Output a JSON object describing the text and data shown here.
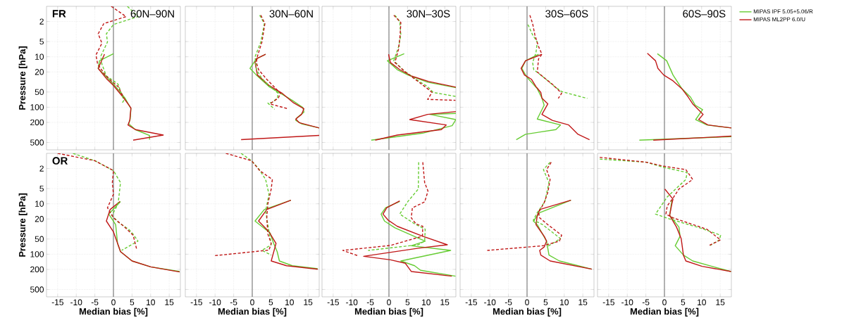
{
  "chart_data": [
    {
      "type": "line",
      "title": "60N–90N",
      "annotations": [
        "FR"
      ],
      "ylabel": "Pressure [hPa]",
      "tick_labels": "y",
      "xlim": [
        -18,
        18
      ],
      "ylim": [
        700,
        1
      ],
      "log": "y",
      "grid": true,
      "xticks": [
        -15,
        -10,
        -5,
        0,
        5,
        10,
        15
      ],
      "yticks": [
        2,
        5,
        10,
        20,
        50,
        100,
        200,
        500
      ],
      "ref_lines": [
        {
          "axis": "x",
          "value": 0,
          "color": "#808080"
        }
      ],
      "series": [
        {
          "color": "#66cc33",
          "line_style": "solid",
          "x": [
            0,
            -3.75,
            -4.1,
            -1.9,
            0.6,
            3.1,
            4.7,
            4.5,
            4.1,
            5.9,
            9.7,
            9.7
          ],
          "values": [
            8.7,
            12,
            17,
            25,
            39,
            66,
            107,
            172,
            213,
            278,
            363,
            440
          ]
        },
        {
          "color": "#c01818",
          "line_style": "solid",
          "x": [
            -2.4,
            -4.1,
            -1.9,
            0,
            2.8,
            4.7,
            4.4,
            3.9,
            5.9,
            13.4,
            5.3
          ],
          "values": [
            8.9,
            17,
            27,
            37,
            66,
            103,
            182,
            225,
            278,
            356,
            450
          ]
        },
        {
          "color": "#66cc33",
          "line_style": "dashed",
          "x": [
            3.75,
            6.6,
            0,
            -1.9,
            -1.6,
            -3.4,
            -3.1,
            -1.9,
            0,
            1.25,
            2.8,
            2.2
          ],
          "values": [
            1.0,
            1.6,
            2.3,
            3.5,
            5.1,
            9.7,
            14,
            24,
            30,
            35,
            73,
            86
          ]
        },
        {
          "color": "#c01818",
          "line_style": "dashed",
          "x": [
            -0.6,
            3.4,
            -2.6,
            -4.1,
            -3.1,
            -4.7,
            -4.25,
            -2.2,
            -0.6,
            1.25,
            2.5,
            2.8
          ],
          "values": [
            1.0,
            1.6,
            2.2,
            3.5,
            5.4,
            9.2,
            14,
            23,
            30,
            39,
            59,
            66
          ]
        }
      ]
    },
    {
      "type": "line",
      "title": "30N–60N",
      "tick_labels": false,
      "xlim": [
        -18,
        18
      ],
      "ylim": [
        700,
        1
      ],
      "log": "y",
      "grid": true,
      "xticks": [
        -15,
        -10,
        -5,
        0,
        5,
        10,
        15
      ],
      "yticks": [
        2,
        5,
        10,
        20,
        50,
        100,
        200,
        500
      ],
      "ref_lines": [
        {
          "axis": "x",
          "value": 0,
          "color": "#808080"
        }
      ],
      "series": [
        {
          "color": "#66cc33",
          "line_style": "solid",
          "x": [
            3.6,
            1.1,
            -0.6,
            1.1,
            4.5,
            7.6,
            10.75,
            13.6,
            13.9,
            12,
            11.7,
            13.25,
            18
          ],
          "values": [
            8.9,
            11,
            17,
            23,
            39,
            53,
            73,
            101,
            125,
            163,
            182,
            213,
            258
          ]
        },
        {
          "color": "#c01818",
          "line_style": "solid",
          "x": [
            3.6,
            1.1,
            0.75,
            1.4,
            4.5,
            7.9,
            11.1,
            13.9,
            13.25,
            11.7,
            12.6,
            18,
            null,
            18,
            -3
          ],
          "values": [
            8.9,
            11,
            13,
            23,
            37,
            52,
            82,
            107,
            139,
            172,
            202,
            258,
            null,
            363,
            440
          ]
        },
        {
          "color": "#66cc33",
          "line_style": "dashed",
          "x": [
            2,
            3.25,
            2.3,
            0.75,
            1.1,
            2.6,
            4.8,
            7,
            6.75,
            5.4,
            4.2,
            6
          ],
          "values": [
            1.5,
            2.2,
            5.1,
            10,
            18,
            27,
            39,
            53,
            66,
            80,
            83,
            110
          ]
        },
        {
          "color": "#c01818",
          "line_style": "dashed",
          "x": [
            2.3,
            3.4,
            2.6,
            1.4,
            1.1,
            1.7,
            3.9,
            6.4,
            7.6,
            7,
            5.1,
            4.8,
            9.5
          ],
          "values": [
            1.5,
            2.2,
            5.1,
            9.7,
            13,
            18,
            28,
            43,
            53,
            66,
            82,
            86,
            107
          ]
        }
      ]
    },
    {
      "type": "line",
      "title": "30N–30S",
      "tick_labels": false,
      "xlim": [
        -18,
        18
      ],
      "ylim": [
        700,
        1
      ],
      "log": "y",
      "grid": true,
      "xticks": [
        -15,
        -10,
        -5,
        0,
        5,
        10,
        15
      ],
      "yticks": [
        2,
        5,
        10,
        20,
        50,
        100,
        200,
        500
      ],
      "ref_lines": [
        {
          "axis": "x",
          "value": 0,
          "color": "#808080"
        }
      ],
      "series": [
        {
          "color": "#66cc33",
          "line_style": "solid",
          "x": [
            4.1,
            -0.4,
            2.25,
            5.1,
            10.4,
            18,
            null,
            18,
            11,
            18,
            17,
            9.1,
            -4.75
          ],
          "values": [
            8.7,
            12,
            18,
            23,
            32,
            41,
            null,
            133,
            139,
            176,
            232,
            327,
            450
          ]
        },
        {
          "color": "#c01818",
          "line_style": "solid",
          "x": [
            -0.1,
            0.4,
            2.9,
            6,
            10.7,
            18,
            null,
            18,
            10.4,
            5.6,
            15.4,
            14.1,
            2.25,
            -3.7
          ],
          "values": [
            8.9,
            13,
            18,
            24,
            31,
            40,
            null,
            122,
            139,
            176,
            225,
            278,
            356,
            450
          ]
        },
        {
          "color": "#66cc33",
          "line_style": "dashed",
          "x": [
            1.6,
            2.9,
            3.2,
            2.6,
            1.3,
            4.1,
            7.25,
            10.4,
            11.9,
            17.9
          ],
          "values": [
            1.5,
            2.0,
            3.7,
            6.3,
            12,
            19,
            28,
            39,
            51,
            61
          ]
        },
        {
          "color": "#c01818",
          "line_style": "dashed",
          "x": [
            1.3,
            3.2,
            3.0,
            2.6,
            1.6,
            4.4,
            7.6,
            10.4,
            11.6,
            10.4,
            17.9
          ],
          "values": [
            1.5,
            2.1,
            3.7,
            7.0,
            13,
            20,
            30,
            43,
            51,
            70,
            73
          ]
        }
      ]
    },
    {
      "type": "line",
      "title": "30S–60S",
      "tick_labels": false,
      "xlim": [
        -18,
        18
      ],
      "ylim": [
        700,
        1
      ],
      "log": "y",
      "grid": true,
      "xticks": [
        -15,
        -10,
        -5,
        0,
        5,
        10,
        15
      ],
      "yticks": [
        2,
        5,
        10,
        20,
        50,
        100,
        200,
        500
      ],
      "ref_lines": [
        {
          "axis": "x",
          "value": 0,
          "color": "#808080"
        }
      ],
      "series": [
        {
          "color": "#66cc33",
          "line_style": "solid",
          "x": [
            3.1,
            -0.4,
            -1.4,
            -0.1,
            2.75,
            4,
            4.6,
            2.75,
            9,
            7.75,
            -0.4,
            -2.9
          ],
          "values": [
            8.9,
            12,
            17,
            25,
            43,
            66,
            91,
            172,
            225,
            278,
            344,
            440
          ]
        },
        {
          "color": "#c01818",
          "line_style": "solid",
          "x": [
            4,
            -0.4,
            -1.6,
            -0.7,
            1.2,
            2.4,
            3.7,
            4,
            5.6,
            4,
            6.8,
            11.2,
            13.7,
            16.8
          ],
          "values": [
            8.9,
            12,
            17,
            23,
            28,
            39,
            51,
            66,
            86,
            139,
            182,
            225,
            344,
            440
          ]
        },
        {
          "color": "#66cc33",
          "line_style": "dashed",
          "x": [
            0.25,
            1.5,
            2.75,
            2.4,
            1.5,
            1.8,
            4.3,
            7.4,
            9.3,
            16.2
          ],
          "values": [
            2.3,
            3.7,
            5.1,
            8.3,
            13,
            18,
            25,
            39,
            49,
            67
          ]
        },
        {
          "color": "#c01818",
          "line_style": "dashed",
          "x": [
            0.75,
            1.5,
            2.1,
            3.1,
            4,
            3.1,
            2.75,
            4.3,
            6.8,
            8.7,
            9.3,
            8.4
          ],
          "values": [
            1.5,
            2.2,
            3.7,
            6.3,
            8.9,
            11,
            20,
            25,
            35,
            48,
            53,
            67
          ]
        }
      ]
    },
    {
      "type": "line",
      "title": "60S–90S",
      "tick_labels": false,
      "legend": "top right",
      "xlim": [
        -18,
        18
      ],
      "ylim": [
        700,
        1
      ],
      "log": "y",
      "grid": true,
      "xticks": [
        -15,
        -10,
        -5,
        0,
        5,
        10,
        15
      ],
      "yticks": [
        2,
        5,
        10,
        20,
        50,
        100,
        200,
        500
      ],
      "ref_lines": [
        {
          "axis": "x",
          "value": 0,
          "color": "#808080"
        }
      ],
      "series": [
        {
          "name": "MIPAS IPF 5.05+5.06/R",
          "color": "#66cc33",
          "line_style": "solid",
          "x": [
            -1.9,
            0.6,
            2.3,
            4.7,
            7,
            8.25,
            10.25,
            8.4,
            11.4,
            18,
            null,
            18,
            -6.75
          ],
          "values": [
            8.7,
            12,
            23,
            43,
            63,
            91,
            112,
            176,
            225,
            258,
            null,
            383,
            450
          ]
        },
        {
          "name": "MIPAS ML2PP 6.0/U",
          "color": "#c01818",
          "line_style": "solid",
          "x": [
            -4.6,
            -2.4,
            -1.75,
            -0.2,
            2.3,
            4.8,
            6.4,
            7.6,
            10.4,
            9.2,
            11.7,
            18,
            null,
            18,
            -3
          ],
          "values": [
            8.5,
            12,
            17,
            23,
            30,
            44,
            63,
            86,
            139,
            176,
            225,
            258,
            null,
            375,
            450
          ]
        }
      ]
    },
    {
      "type": "line",
      "annotations": [
        "OR"
      ],
      "xlabel": "Median bias [%]",
      "ylabel": "Pressure [hPa]",
      "xlim": [
        -18,
        18
      ],
      "ylim": [
        700,
        1
      ],
      "log": "y",
      "grid": true,
      "xticks": [
        -15,
        -10,
        -5,
        0,
        5,
        10,
        15
      ],
      "yticks": [
        2,
        5,
        10,
        20,
        50,
        100,
        200,
        500
      ],
      "ref_lines": [
        {
          "axis": "x",
          "value": 0,
          "color": "#808080"
        }
      ],
      "series": [
        {
          "color": "#66cc33",
          "line_style": "solid",
          "x": [
            1.9,
            -1.25,
            0.6,
            1.1,
            1.9,
            5,
            10,
            17.8
          ],
          "values": [
            9.0,
            16,
            26,
            61,
            89,
            136,
            178,
            220
          ]
        },
        {
          "color": "#c01818",
          "line_style": "solid",
          "x": [
            1.75,
            -0.9,
            -1.9,
            0,
            1.9,
            5,
            10,
            17.8
          ],
          "values": [
            9.0,
            13,
            22,
            36,
            89,
            136,
            178,
            225
          ]
        },
        {
          "color": "#66cc33",
          "line_style": "dashed",
          "x": [
            -10.9,
            -5,
            0,
            1.9,
            1.25,
            -0.4,
            1.25,
            4.1,
            5.3,
            6.6,
            2.2
          ],
          "values": [
            1.0,
            1.4,
            2.2,
            3.8,
            10,
            17,
            23,
            32,
            40,
            55,
            84
          ]
        },
        {
          "color": "#c01818",
          "line_style": "dashed",
          "x": [
            -15,
            -5,
            0,
            -0.3,
            0,
            -1.6,
            0,
            2.8,
            5.3,
            6.25
          ],
          "values": [
            1.0,
            1.4,
            2.2,
            3.8,
            6.5,
            12,
            19,
            28,
            42,
            80
          ]
        }
      ]
    },
    {
      "type": "line",
      "xlabel": "Median bias [%]",
      "tick_labels": "x",
      "xlim": [
        -18,
        18
      ],
      "ylim": [
        700,
        1
      ],
      "log": "y",
      "grid": true,
      "xticks": [
        -15,
        -10,
        -5,
        0,
        5,
        10,
        15
      ],
      "yticks": [
        2,
        5,
        10,
        20,
        50,
        100,
        200,
        500
      ],
      "ref_lines": [
        {
          "axis": "x",
          "value": 0,
          "color": "#808080"
        }
      ],
      "series": [
        {
          "color": "#66cc33",
          "line_style": "solid",
          "x": [
            10.4,
            3.25,
            0.75,
            4.8,
            5.75,
            6.7,
            7.3,
            10.75,
            17.6
          ],
          "values": [
            8.5,
            13,
            22,
            38,
            61,
            89,
            136,
            169,
            194
          ]
        },
        {
          "color": "#c01818",
          "line_style": "solid",
          "x": [
            10.4,
            3.9,
            1.7,
            4.5,
            6.4,
            5.1,
            9.2,
            17.6
          ],
          "values": [
            8.5,
            13,
            22,
            36,
            61,
            136,
            169,
            198
          ]
        },
        {
          "color": "#66cc33",
          "line_style": "dashed",
          "x": [
            -3,
            -0.2,
            1.7,
            3.6,
            4.5,
            3.6,
            4.2,
            5.1,
            2.6,
            5.1
          ],
          "values": [
            1.0,
            1.4,
            2.0,
            3.3,
            6.5,
            14,
            26,
            65,
            84,
            104
          ]
        },
        {
          "color": "#c01818",
          "line_style": "dashed",
          "x": [
            -7.1,
            -0.2,
            2,
            5.4,
            5.1,
            4.2,
            3.9,
            4.2,
            5.1,
            4.5,
            -10.2
          ],
          "values": [
            1.0,
            1.4,
            2.2,
            3.3,
            5.1,
            10,
            19,
            40,
            61,
            83,
            107
          ]
        }
      ]
    },
    {
      "type": "line",
      "xlabel": "Median bias [%]",
      "tick_labels": "x",
      "xlim": [
        -18,
        18
      ],
      "ylim": [
        700,
        1
      ],
      "log": "y",
      "grid": true,
      "xticks": [
        -15,
        -10,
        -5,
        0,
        5,
        10,
        15
      ],
      "yticks": [
        2,
        5,
        10,
        20,
        50,
        100,
        200,
        500
      ],
      "ref_lines": [
        {
          "axis": "x",
          "value": 0,
          "color": "#808080"
        }
      ],
      "series": [
        {
          "color": "#66cc33",
          "line_style": "solid",
          "x": [
            2.9,
            -0.9,
            -2.1,
            -1.2,
            1.6,
            9.75,
            6,
            16.6,
            3.2,
            6.9,
            8.5,
            17.9
          ],
          "values": [
            9.0,
            12,
            16,
            22,
            30,
            55,
            68,
            84,
            136,
            169,
            208,
            272
          ]
        },
        {
          "color": "#c01818",
          "line_style": "solid",
          "x": [
            2.9,
            -0.6,
            -1.6,
            -0.25,
            2.25,
            9.1,
            15.7,
            7.9,
            -6.8,
            0.4,
            4.4,
            5.1,
            6,
            16.9
          ],
          "values": [
            8.8,
            12,
            16,
            21,
            28,
            44,
            65,
            76,
            110,
            129,
            151,
            178,
            220,
            272
          ]
        },
        {
          "color": "#66cc33",
          "line_style": "dashed",
          "x": [
            8,
            7.9,
            5.1,
            2.9,
            6.9,
            9.75,
            9.6,
            7.9,
            -5.6
          ],
          "values": [
            1.5,
            5.1,
            9.0,
            16,
            25,
            32,
            55,
            65,
            84
          ]
        },
        {
          "color": "#c01818",
          "line_style": "dashed",
          "x": [
            9.1,
            9.6,
            10.5,
            9.6,
            6.3,
            6,
            7.25,
            9.1,
            9,
            0.4,
            -12.4,
            -8.4
          ],
          "values": [
            1.5,
            3.8,
            5.6,
            9.2,
            12,
            19,
            25,
            28,
            44,
            67,
            84,
            107
          ]
        }
      ]
    },
    {
      "type": "line",
      "xlabel": "Median bias [%]",
      "tick_labels": "x",
      "xlim": [
        -18,
        18
      ],
      "ylim": [
        700,
        1
      ],
      "log": "y",
      "grid": true,
      "xticks": [
        -15,
        -10,
        -5,
        0,
        5,
        10,
        15
      ],
      "yticks": [
        2,
        5,
        10,
        20,
        50,
        100,
        200,
        500
      ],
      "ref_lines": [
        {
          "axis": "x",
          "value": 0,
          "color": "#808080"
        }
      ],
      "series": [
        {
          "color": "#66cc33",
          "line_style": "solid",
          "x": [
            11.8,
            3.4,
            1.7,
            2.75,
            5.25,
            5.9,
            8.7,
            17.4
          ],
          "values": [
            8.5,
            15,
            22,
            26,
            55,
            104,
            136,
            198
          ]
        },
        {
          "color": "#c01818",
          "line_style": "solid",
          "x": [
            11.8,
            3.4,
            2.75,
            2.4,
            4.6,
            5.25,
            4.6,
            3.4,
            3.7,
            6.2,
            17.4
          ],
          "values": [
            8.5,
            13,
            17,
            26,
            44,
            55,
            72,
            84,
            104,
            136,
            198
          ]
        },
        {
          "color": "#66cc33",
          "line_style": "dashed",
          "x": [
            6.2,
            4.4,
            5.9,
            4.8,
            2.75,
            1.7,
            4.2,
            9,
            5.25
          ],
          "values": [
            1.5,
            2.1,
            3.8,
            9.0,
            15,
            21,
            26,
            49,
            72
          ]
        },
        {
          "color": "#c01818",
          "line_style": "dashed",
          "x": [
            6.5,
            5.25,
            6.2,
            5.6,
            4.6,
            3.1,
            3.4,
            5.6,
            9.3,
            8.7,
            4.3,
            -10.7
          ],
          "values": [
            1.5,
            2.1,
            3.3,
            5.9,
            9.5,
            15,
            19,
            26,
            42,
            55,
            68,
            84
          ]
        }
      ]
    },
    {
      "type": "line",
      "xlabel": "Median bias [%]",
      "tick_labels": "x",
      "xlim": [
        -18,
        18
      ],
      "ylim": [
        700,
        1
      ],
      "log": "y",
      "grid": true,
      "xticks": [
        -15,
        -10,
        -5,
        0,
        5,
        10,
        15
      ],
      "yticks": [
        2,
        5,
        10,
        20,
        50,
        100,
        200,
        500
      ],
      "ref_lines": [
        {
          "axis": "x",
          "value": 0,
          "color": "#808080"
        }
      ],
      "series": [
        {
          "color": "#66cc33",
          "line_style": "solid",
          "x": [
            2,
            1.4,
            3.9,
            4.2,
            2.9,
            5.1,
            7.6,
            13.25,
            17.9
          ],
          "values": [
            8.5,
            17,
            29,
            44,
            68,
            104,
            136,
            178,
            220
          ]
        },
        {
          "color": "#c01818",
          "line_style": "solid",
          "x": [
            0.1,
            2.3,
            2,
            1.4,
            3.25,
            4.5,
            5.1,
            5.75,
            10.1,
            17.9
          ],
          "values": [
            5.1,
            8.1,
            10,
            17,
            29,
            49,
            104,
            136,
            174,
            220
          ]
        },
        {
          "color": "#66cc33",
          "line_style": "dashed",
          "x": [
            -17.4,
            -4.9,
            -0.2,
            6.1,
            5.75,
            0.75,
            -2.4,
            1.4,
            10.1,
            15.1,
            14.8,
            12.3
          ],
          "values": [
            1.3,
            1.5,
            1.9,
            2.4,
            3.3,
            7.3,
            16,
            20,
            31,
            42,
            52,
            67
          ]
        },
        {
          "color": "#c01818",
          "line_style": "dashed",
          "x": [
            -17.4,
            -4.9,
            -0.2,
            5.75,
            7.6,
            3.9,
            2.3,
            0.75,
            0.4,
            2.3,
            11.4,
            15.1,
            12
          ],
          "values": [
            1.2,
            1.5,
            1.8,
            2.1,
            3.3,
            5.1,
            7.7,
            11,
            16,
            19,
            32,
            52,
            67
          ]
        }
      ]
    }
  ]
}
